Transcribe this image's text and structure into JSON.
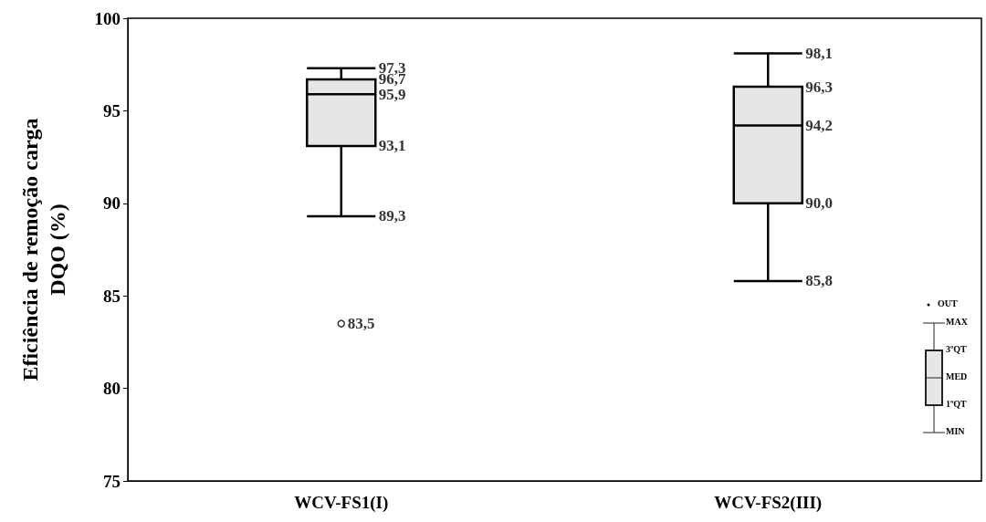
{
  "chart_data": {
    "type": "box",
    "ylabel": "Eficiência de remoção carga\nDQO (%)",
    "categories": [
      "WCV-FS1(I)",
      "WCV-FS2(III)"
    ],
    "series": [
      {
        "color": "#e6e6e6",
        "boxes": [
          {
            "low": 89.3,
            "q1": 93.1,
            "median": 95.9,
            "q3": 96.7,
            "high": 97.3
          },
          {
            "low": 85.8,
            "q1": 90.0,
            "median": 94.2,
            "q3": 96.3,
            "high": 98.1
          }
        ]
      },
      {
        "type": "scatter",
        "color": "#ffffff",
        "marker": "circle",
        "x": [
          "WCV-FS1(I)"
        ],
        "values": [
          83.5
        ]
      }
    ],
    "ylim": [
      75,
      100
    ],
    "yticks": [
      75,
      80,
      85,
      90,
      95,
      100
    ],
    "grid": false,
    "annotations": [
      "OUT",
      "MAX",
      "3ºQT",
      "MED",
      "1ºQT",
      "MIN",
      {
        "text": "97,3",
        "x": "WCV-FS1(I)",
        "y": 97.3
      },
      {
        "text": "96,7",
        "x": "WCV-FS1(I)",
        "y": 96.7
      },
      {
        "text": "95,9",
        "x": "WCV-FS1(I)",
        "y": 95.9
      },
      {
        "text": "93,1",
        "x": "WCV-FS1(I)",
        "y": 93.1
      },
      {
        "text": "89,3",
        "x": "WCV-FS1(I)",
        "y": 89.3
      },
      {
        "text": "83,5",
        "x": "WCV-FS1(I)",
        "y": 83.5
      },
      {
        "text": "98,1",
        "x": "WCV-FS2(III)",
        "y": 98.1
      },
      {
        "text": "96,3",
        "x": "WCV-FS2(III)",
        "y": 96.3
      },
      {
        "text": "94,2",
        "x": "WCV-FS2(III)",
        "y": 94.2
      },
      {
        "text": "90,0",
        "x": "WCV-FS2(III)",
        "y": 90.0
      },
      {
        "text": "85,8",
        "x": "WCV-FS2(III)",
        "y": 85.8
      }
    ]
  }
}
